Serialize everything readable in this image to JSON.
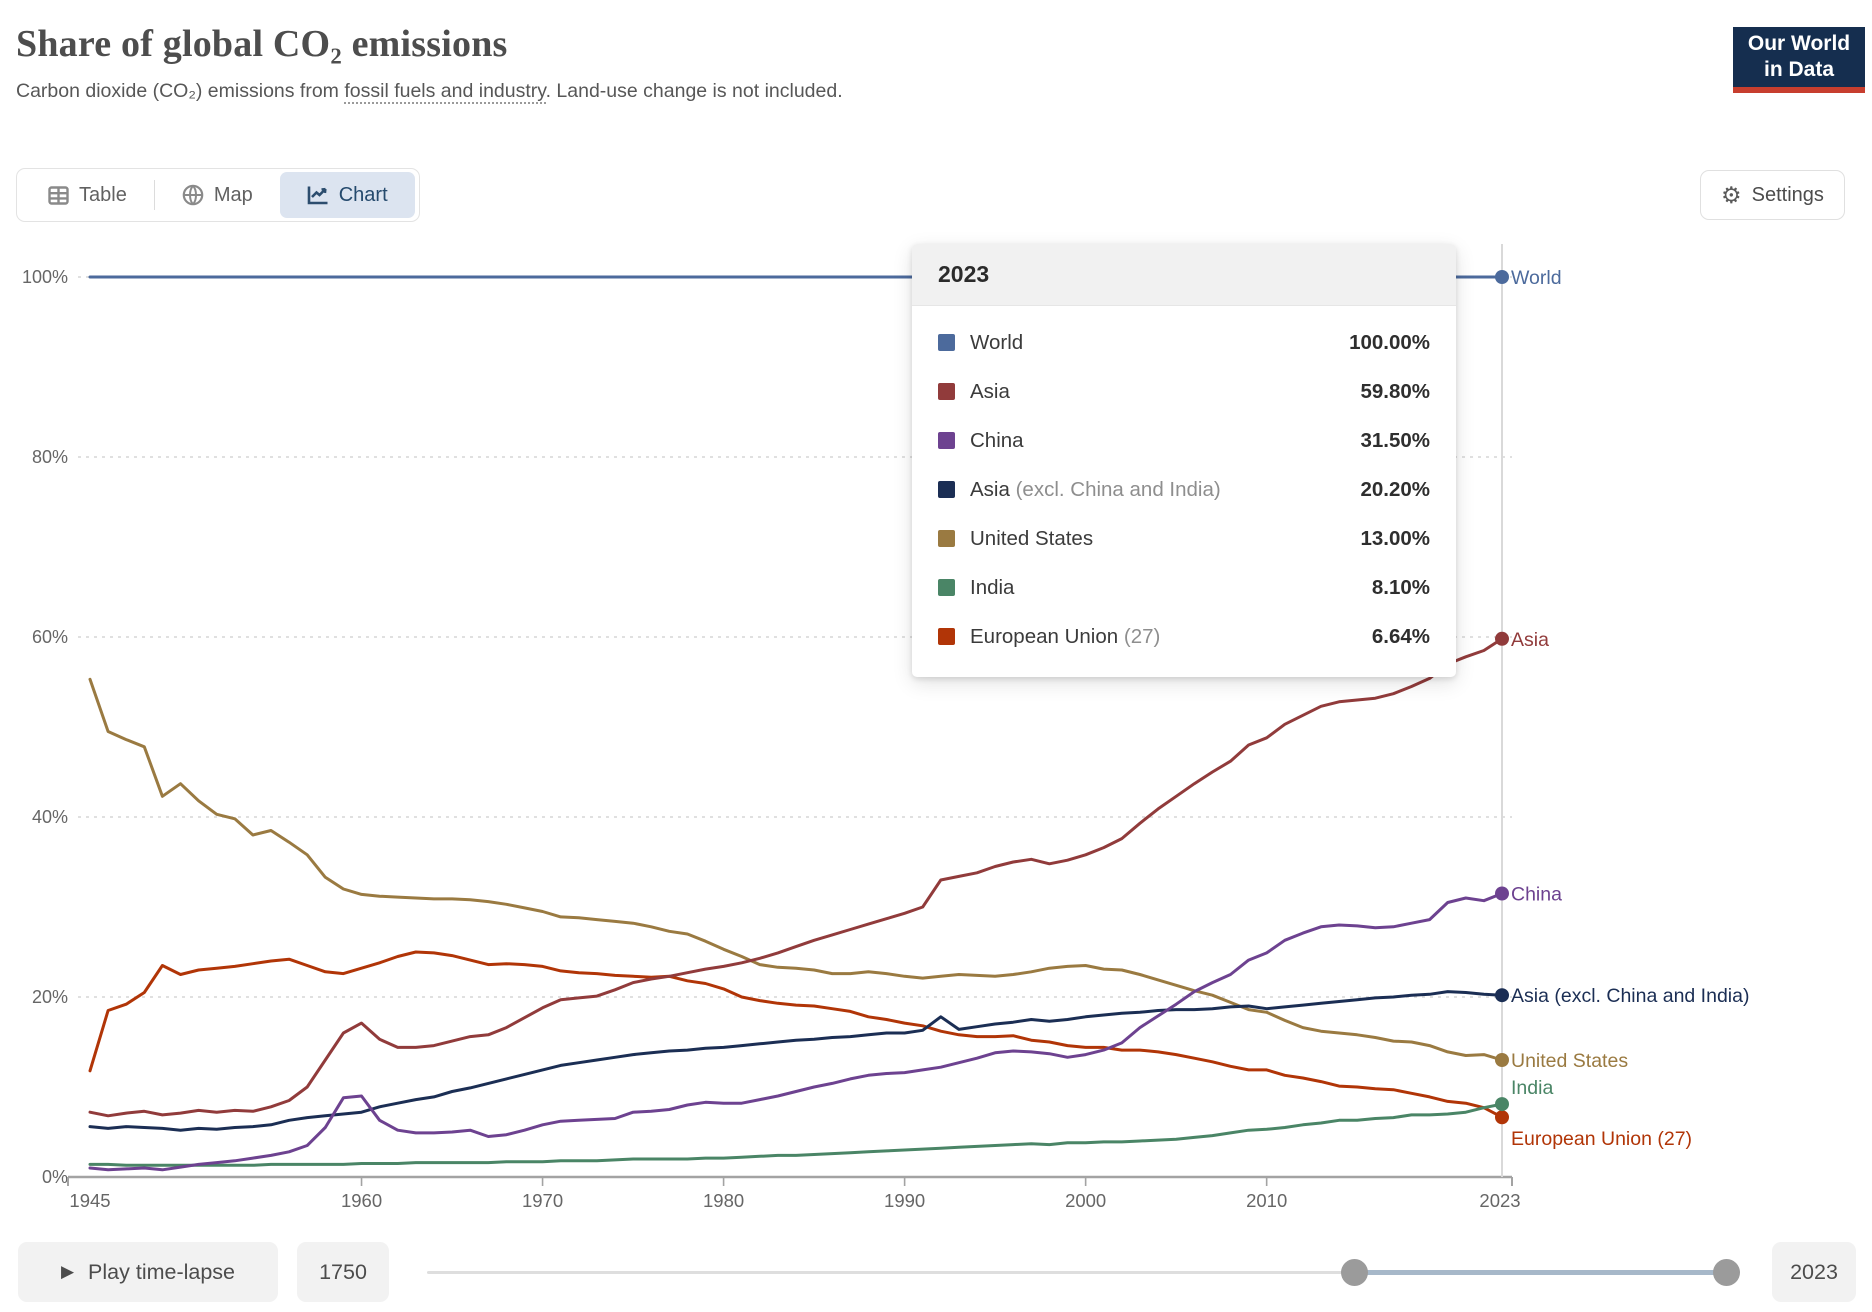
{
  "header": {
    "title": "Share of global CO₂ emissions",
    "subtitle_prefix": "Carbon dioxide (CO₂) emissions from ",
    "subtitle_link": "fossil fuels and industry",
    "subtitle_suffix": ". Land-use change is not included.",
    "logo_line1": "Our World",
    "logo_line2": "in Data",
    "logo_bg": "#152e4f",
    "logo_stripe": "#c73e2e"
  },
  "tabs": {
    "table_label": "Table",
    "map_label": "Map",
    "chart_label": "Chart",
    "active": "Chart",
    "active_bg": "#dce4f0"
  },
  "settings_label": "Settings",
  "tooltip": {
    "year": "2023",
    "rows": [
      {
        "label": "World",
        "sublabel": "",
        "value": "100.00%",
        "color": "#4C6A9C"
      },
      {
        "label": "Asia",
        "sublabel": "",
        "value": "59.80%",
        "color": "#913B3B"
      },
      {
        "label": "China",
        "sublabel": "",
        "value": "31.50%",
        "color": "#6D4290"
      },
      {
        "label": "Asia",
        "sublabel": "(excl. China and India)",
        "value": "20.20%",
        "color": "#1B2E54"
      },
      {
        "label": "United States",
        "sublabel": "",
        "value": "13.00%",
        "color": "#9A7A41"
      },
      {
        "label": "India",
        "sublabel": "",
        "value": "8.10%",
        "color": "#4A8566"
      },
      {
        "label": "European Union",
        "sublabel": "(27)",
        "value": "6.64%",
        "color": "#B13507"
      }
    ]
  },
  "timeline": {
    "play_label": "Play time-lapse",
    "start_year": "1750",
    "end_year": "2023"
  },
  "chart_data": {
    "type": "line",
    "title": "Share of global CO₂ emissions",
    "xlabel": "",
    "ylabel": "",
    "ylim": [
      0,
      100
    ],
    "y_ticks": [
      0,
      20,
      40,
      60,
      80,
      100
    ],
    "y_tick_format": "percent",
    "x_ticks": [
      1945,
      1960,
      1970,
      1980,
      1990,
      2000,
      2010,
      2023
    ],
    "x_range": [
      1945,
      2023
    ],
    "grid": "dashed-horizontal",
    "legend_position": "right-edge-labels",
    "highlight_year": 2023,
    "x": [
      1945,
      1946,
      1947,
      1948,
      1949,
      1950,
      1951,
      1952,
      1953,
      1954,
      1955,
      1956,
      1957,
      1958,
      1959,
      1960,
      1961,
      1962,
      1963,
      1964,
      1965,
      1966,
      1967,
      1968,
      1969,
      1970,
      1971,
      1972,
      1973,
      1974,
      1975,
      1976,
      1977,
      1978,
      1979,
      1980,
      1981,
      1982,
      1983,
      1984,
      1985,
      1986,
      1987,
      1988,
      1989,
      1990,
      1991,
      1992,
      1993,
      1994,
      1995,
      1996,
      1997,
      1998,
      1999,
      2000,
      2001,
      2002,
      2003,
      2004,
      2005,
      2006,
      2007,
      2008,
      2009,
      2010,
      2011,
      2012,
      2013,
      2014,
      2015,
      2016,
      2017,
      2018,
      2019,
      2020,
      2021,
      2022,
      2023
    ],
    "series": [
      {
        "name": "World",
        "end_label": "World",
        "color": "#4C6A9C",
        "end_value_label": "100.00%",
        "values": [
          100,
          100,
          100,
          100,
          100,
          100,
          100,
          100,
          100,
          100,
          100,
          100,
          100,
          100,
          100,
          100,
          100,
          100,
          100,
          100,
          100,
          100,
          100,
          100,
          100,
          100,
          100,
          100,
          100,
          100,
          100,
          100,
          100,
          100,
          100,
          100,
          100,
          100,
          100,
          100,
          100,
          100,
          100,
          100,
          100,
          100,
          100,
          100,
          100,
          100,
          100,
          100,
          100,
          100,
          100,
          100,
          100,
          100,
          100,
          100,
          100,
          100,
          100,
          100,
          100,
          100,
          100,
          100,
          100,
          100,
          100,
          100,
          100,
          100,
          100,
          100,
          100,
          100,
          100
        ]
      },
      {
        "name": "United States",
        "end_label": "United States",
        "color": "#9A7A41",
        "end_value_label": "13.00%",
        "values": [
          55.3,
          49.5,
          48.6,
          47.8,
          42.3,
          43.7,
          41.8,
          40.3,
          39.8,
          38.0,
          38.5,
          37.2,
          35.8,
          33.3,
          32.0,
          31.4,
          31.2,
          31.1,
          31.0,
          30.9,
          30.9,
          30.8,
          30.6,
          30.3,
          29.9,
          29.5,
          28.9,
          28.8,
          28.6,
          28.4,
          28.2,
          27.8,
          27.3,
          27.0,
          26.2,
          25.3,
          24.5,
          23.6,
          23.3,
          23.2,
          23.0,
          22.6,
          22.6,
          22.8,
          22.6,
          22.3,
          22.1,
          22.3,
          22.5,
          22.4,
          22.3,
          22.5,
          22.8,
          23.2,
          23.4,
          23.5,
          23.1,
          23.0,
          22.5,
          21.9,
          21.3,
          20.7,
          20.2,
          19.4,
          18.6,
          18.3,
          17.4,
          16.6,
          16.2,
          16.0,
          15.8,
          15.5,
          15.1,
          15.0,
          14.6,
          13.9,
          13.5,
          13.6,
          13.0
        ]
      },
      {
        "name": "European Union (27)",
        "end_label": "European Union (27)",
        "color": "#B13507",
        "end_value_label": "6.64%",
        "values": [
          11.8,
          18.5,
          19.2,
          20.5,
          23.5,
          22.5,
          23.0,
          23.2,
          23.4,
          23.7,
          24.0,
          24.2,
          23.5,
          22.8,
          22.6,
          23.2,
          23.8,
          24.5,
          25.0,
          24.9,
          24.6,
          24.1,
          23.6,
          23.7,
          23.6,
          23.4,
          22.9,
          22.7,
          22.6,
          22.4,
          22.3,
          22.2,
          22.3,
          21.8,
          21.5,
          20.9,
          20.0,
          19.6,
          19.3,
          19.1,
          19.0,
          18.7,
          18.4,
          17.8,
          17.5,
          17.1,
          16.8,
          16.2,
          15.8,
          15.6,
          15.6,
          15.7,
          15.2,
          15.0,
          14.6,
          14.4,
          14.4,
          14.1,
          14.1,
          13.9,
          13.6,
          13.2,
          12.8,
          12.3,
          11.9,
          11.9,
          11.3,
          11.0,
          10.6,
          10.1,
          10.0,
          9.8,
          9.7,
          9.3,
          8.9,
          8.4,
          8.2,
          7.7,
          6.64
        ]
      },
      {
        "name": "India",
        "end_label": "India",
        "color": "#4A8566",
        "end_value_label": "8.10%",
        "values": [
          1.4,
          1.4,
          1.3,
          1.3,
          1.3,
          1.3,
          1.3,
          1.3,
          1.3,
          1.3,
          1.4,
          1.4,
          1.4,
          1.4,
          1.4,
          1.5,
          1.5,
          1.5,
          1.6,
          1.6,
          1.6,
          1.6,
          1.6,
          1.7,
          1.7,
          1.7,
          1.8,
          1.8,
          1.8,
          1.9,
          2.0,
          2.0,
          2.0,
          2.0,
          2.1,
          2.1,
          2.2,
          2.3,
          2.4,
          2.4,
          2.5,
          2.6,
          2.7,
          2.8,
          2.9,
          3.0,
          3.1,
          3.2,
          3.3,
          3.4,
          3.5,
          3.6,
          3.7,
          3.6,
          3.8,
          3.8,
          3.9,
          3.9,
          4.0,
          4.1,
          4.2,
          4.4,
          4.6,
          4.9,
          5.2,
          5.3,
          5.5,
          5.8,
          6.0,
          6.3,
          6.3,
          6.5,
          6.6,
          6.9,
          6.9,
          7.0,
          7.2,
          7.7,
          8.1
        ]
      },
      {
        "name": "Asia (excl. China and India)",
        "end_label": "Asia (excl. China and India)",
        "color": "#1B2E54",
        "end_value_label": "20.20%",
        "values": [
          5.6,
          5.4,
          5.6,
          5.5,
          5.4,
          5.2,
          5.4,
          5.3,
          5.5,
          5.6,
          5.8,
          6.3,
          6.6,
          6.8,
          7.0,
          7.2,
          7.8,
          8.2,
          8.6,
          8.9,
          9.5,
          9.9,
          10.4,
          10.9,
          11.4,
          11.9,
          12.4,
          12.7,
          13.0,
          13.3,
          13.6,
          13.8,
          14.0,
          14.1,
          14.3,
          14.4,
          14.6,
          14.8,
          15.0,
          15.2,
          15.3,
          15.5,
          15.6,
          15.8,
          16.0,
          16.0,
          16.3,
          17.8,
          16.4,
          16.7,
          17.0,
          17.2,
          17.5,
          17.3,
          17.5,
          17.8,
          18.0,
          18.2,
          18.3,
          18.5,
          18.6,
          18.6,
          18.7,
          18.9,
          19.0,
          18.7,
          18.9,
          19.1,
          19.3,
          19.5,
          19.7,
          19.9,
          20.0,
          20.2,
          20.3,
          20.6,
          20.5,
          20.3,
          20.2
        ]
      },
      {
        "name": "China",
        "end_label": "China",
        "color": "#6D4290",
        "end_value_label": "31.50%",
        "values": [
          1.0,
          0.8,
          0.9,
          1.0,
          0.8,
          1.1,
          1.4,
          1.6,
          1.8,
          2.1,
          2.4,
          2.8,
          3.5,
          5.5,
          8.8,
          9.0,
          6.3,
          5.2,
          4.9,
          4.9,
          5.0,
          5.2,
          4.5,
          4.7,
          5.2,
          5.8,
          6.2,
          6.3,
          6.4,
          6.5,
          7.2,
          7.3,
          7.5,
          8.0,
          8.3,
          8.2,
          8.2,
          8.6,
          9.0,
          9.5,
          10.0,
          10.4,
          10.9,
          11.3,
          11.5,
          11.6,
          11.9,
          12.2,
          12.7,
          13.2,
          13.8,
          14.0,
          13.9,
          13.7,
          13.3,
          13.6,
          14.1,
          14.9,
          16.6,
          17.9,
          19.2,
          20.6,
          21.6,
          22.5,
          24.1,
          24.9,
          26.3,
          27.1,
          27.8,
          28.0,
          27.9,
          27.7,
          27.8,
          28.2,
          28.6,
          30.5,
          31.0,
          30.7,
          31.5
        ]
      },
      {
        "name": "Asia",
        "end_label": "Asia",
        "color": "#913B3B",
        "end_value_label": "59.80%",
        "values": [
          7.2,
          6.8,
          7.1,
          7.3,
          6.9,
          7.1,
          7.4,
          7.2,
          7.4,
          7.3,
          7.8,
          8.5,
          10.0,
          13.0,
          16.0,
          17.1,
          15.3,
          14.4,
          14.4,
          14.6,
          15.1,
          15.6,
          15.8,
          16.6,
          17.7,
          18.8,
          19.7,
          19.9,
          20.1,
          20.8,
          21.6,
          22.0,
          22.3,
          22.7,
          23.1,
          23.4,
          23.8,
          24.3,
          24.9,
          25.6,
          26.3,
          26.9,
          27.5,
          28.1,
          28.7,
          29.3,
          30.0,
          33.0,
          33.4,
          33.8,
          34.5,
          35.0,
          35.3,
          34.8,
          35.2,
          35.8,
          36.6,
          37.6,
          39.3,
          40.9,
          42.3,
          43.7,
          45.0,
          46.2,
          48.0,
          48.8,
          50.3,
          51.3,
          52.3,
          52.8,
          53.0,
          53.2,
          53.7,
          54.5,
          55.4,
          57.0,
          57.8,
          58.5,
          59.8
        ]
      }
    ]
  }
}
